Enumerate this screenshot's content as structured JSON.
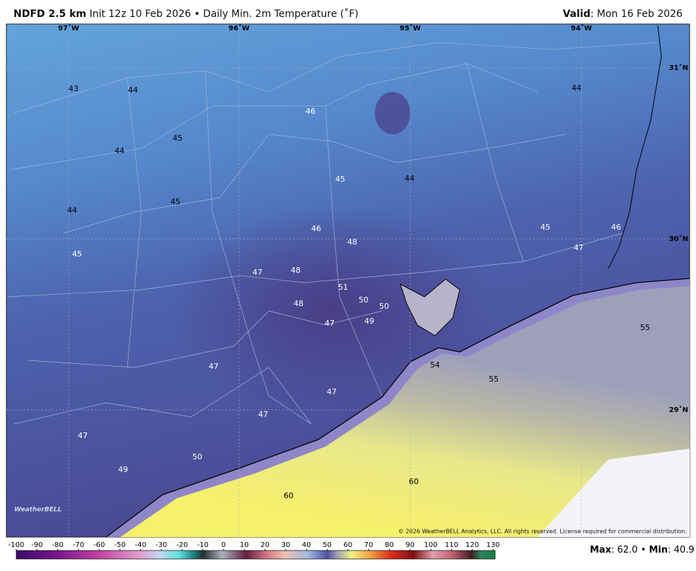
{
  "header": {
    "model": "NDFD 2.5 km",
    "description": "Init 12z 10 Feb 2026 • Daily Min. 2m Temperature (˚F)",
    "valid_label": "Valid",
    "valid_date": ": Mon 16 Feb 2026"
  },
  "longitudes": [
    "97˚W",
    "96˚W",
    "95˚W",
    "94˚W"
  ],
  "latitudes": [
    "31˚N",
    "30˚N",
    "29˚N"
  ],
  "station_values": [
    43,
    44,
    45,
    44,
    45,
    44,
    45,
    46,
    45,
    44,
    44,
    46,
    48,
    47,
    48,
    51,
    50,
    50,
    48,
    47,
    49,
    45,
    46,
    47,
    55,
    54,
    55,
    47,
    47,
    47,
    47,
    50,
    49,
    60,
    60
  ],
  "logo": "WeatherBELL",
  "copyright": "© 2026 WeatherBELL Analytics, LLC. All rights reserved. License required for commercial distribution.",
  "colorbar": {
    "ticks": [
      -100,
      -90,
      -80,
      -70,
      -60,
      -50,
      -40,
      -30,
      -20,
      -10,
      0,
      10,
      20,
      30,
      40,
      50,
      60,
      70,
      80,
      90,
      100,
      110,
      120,
      130
    ]
  },
  "stats": {
    "max_label": "Max",
    "max_text": ": 62.0 • ",
    "min_label": "Min",
    "min_text": ": 40.9"
  }
}
